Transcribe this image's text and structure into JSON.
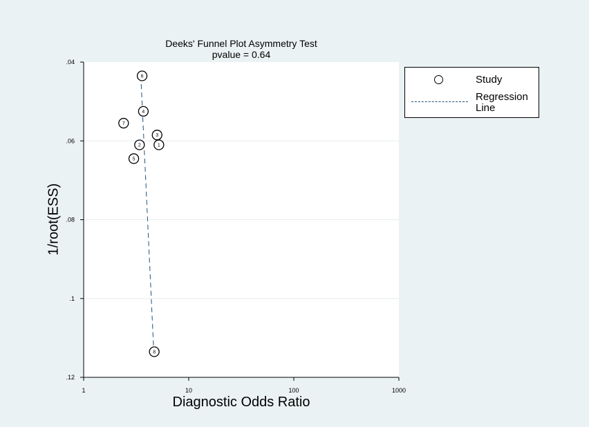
{
  "chart_data": {
    "type": "scatter",
    "title": "Deeks' Funnel Plot Asymmetry Test",
    "subtitle": "pvalue =   0.64",
    "xlabel": "Diagnostic Odds Ratio",
    "ylabel": "1/root(ESS)",
    "x_scale": "log",
    "xlim": [
      1,
      1000
    ],
    "ylim": [
      0.04,
      0.12
    ],
    "y_inverted": true,
    "grid": true,
    "x_ticks": [
      1,
      10,
      100,
      1000
    ],
    "x_tick_labels": [
      "1",
      "10",
      "100",
      "1000"
    ],
    "y_ticks": [
      0.04,
      0.06,
      0.08,
      0.1,
      0.12
    ],
    "y_tick_labels": [
      ".04",
      ".06",
      ".08",
      ".1",
      ".12"
    ],
    "points": [
      {
        "label": "1",
        "x": 5.2,
        "y": 0.061
      },
      {
        "label": "2",
        "x": 3.4,
        "y": 0.061
      },
      {
        "label": "3",
        "x": 5.0,
        "y": 0.0585
      },
      {
        "label": "4",
        "x": 3.7,
        "y": 0.0525
      },
      {
        "label": "5",
        "x": 3.0,
        "y": 0.0645
      },
      {
        "label": "6",
        "x": 3.6,
        "y": 0.0435
      },
      {
        "label": "7",
        "x": 2.4,
        "y": 0.0555
      },
      {
        "label": "8",
        "x": 4.7,
        "y": 0.1135
      }
    ],
    "regression_line": {
      "x": [
        3.5,
        4.65
      ],
      "y": [
        0.0435,
        0.1135
      ]
    },
    "legend": {
      "position": "right",
      "entries": [
        {
          "label": "Study",
          "kind": "marker"
        },
        {
          "label": "Regression Line",
          "kind": "dashed-line"
        }
      ]
    },
    "colors": {
      "background": "#eaf2f3",
      "plot_area": "#ffffff",
      "grid": "#e6ecec",
      "regression": "#1f4e79",
      "marker": "#000000"
    }
  }
}
